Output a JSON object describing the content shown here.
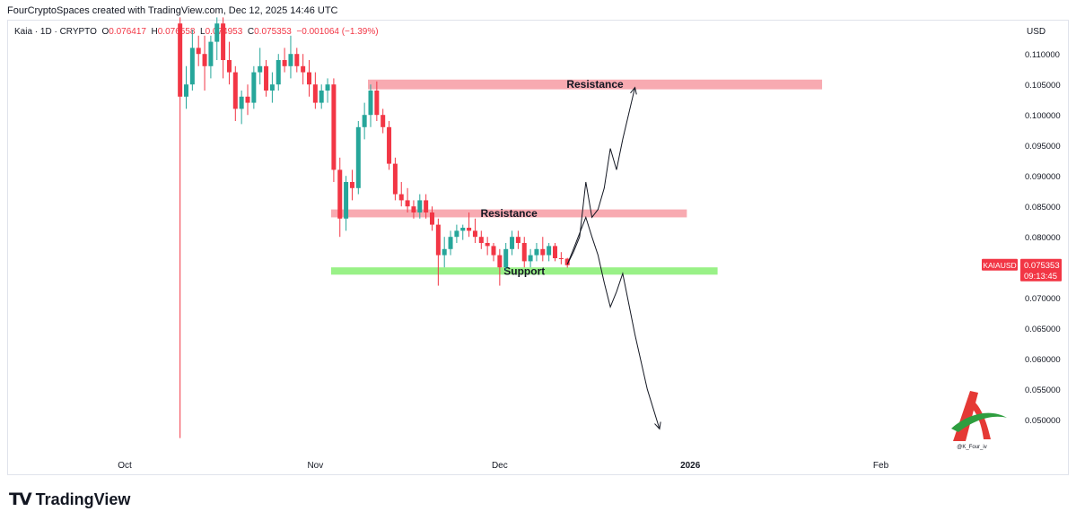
{
  "header": {
    "credit": "FourCryptoSpaces created with TradingView.com, Dec 12, 2025 14:46 UTC"
  },
  "legend": {
    "symbol": "Kaia · 1D · CRYPTO",
    "open_label": "O",
    "open": "0.076417",
    "high_label": "H",
    "high": "0.076558",
    "low_label": "L",
    "low": "0.074953",
    "close_label": "C",
    "close": "0.075353",
    "change": "−0.001064 (−1.39%)"
  },
  "axis": {
    "currency": "USD",
    "y_ticks": [
      "0.110000",
      "0.105000",
      "0.100000",
      "0.095000",
      "0.090000",
      "0.085000",
      "0.080000",
      "0.075000",
      "0.070000",
      "0.065000",
      "0.060000",
      "0.055000",
      "0.050000"
    ],
    "x_ticks": [
      {
        "label": "Oct",
        "date": "2025-10-01",
        "bold": false
      },
      {
        "label": "Nov",
        "date": "2025-11-01",
        "bold": false
      },
      {
        "label": "Dec",
        "date": "2025-12-01",
        "bold": false
      },
      {
        "label": "2026",
        "date": "2026-01-01",
        "bold": true
      },
      {
        "label": "Feb",
        "date": "2026-02-01",
        "bold": false
      }
    ]
  },
  "price_tag": {
    "ticker": "KAIAUSD",
    "price": "0.075353",
    "countdown": "09:13:45"
  },
  "colors": {
    "up": "#26a69a",
    "down": "#f23645",
    "resistance": "#f7a1a8",
    "support": "#8ef07a",
    "tag": "#f23645"
  },
  "watermark": {
    "handle": "@K_Four_iv"
  },
  "footer": {
    "brand": "TradingView",
    "logo": "tradingview-logo"
  },
  "chart_data": {
    "type": "candlestick",
    "symbol": "KAIAUSD",
    "interval": "1D",
    "ylim": [
      0.0465,
      0.1115
    ],
    "candles": [
      {
        "date": "2025-10-10",
        "open": 0.115,
        "high": 0.116,
        "low": 0.047,
        "close": 0.103
      },
      {
        "date": "2025-10-11",
        "open": 0.103,
        "high": 0.108,
        "low": 0.101,
        "close": 0.105
      },
      {
        "date": "2025-10-12",
        "open": 0.105,
        "high": 0.114,
        "low": 0.104,
        "close": 0.111
      },
      {
        "date": "2025-10-13",
        "open": 0.111,
        "high": 0.113,
        "low": 0.108,
        "close": 0.11
      },
      {
        "date": "2025-10-14",
        "open": 0.11,
        "high": 0.113,
        "low": 0.104,
        "close": 0.108
      },
      {
        "date": "2025-10-15",
        "open": 0.108,
        "high": 0.113,
        "low": 0.106,
        "close": 0.112
      },
      {
        "date": "2025-10-16",
        "open": 0.112,
        "high": 0.116,
        "low": 0.109,
        "close": 0.115
      },
      {
        "date": "2025-10-17",
        "open": 0.115,
        "high": 0.116,
        "low": 0.106,
        "close": 0.109
      },
      {
        "date": "2025-10-18",
        "open": 0.109,
        "high": 0.112,
        "low": 0.105,
        "close": 0.107
      },
      {
        "date": "2025-10-19",
        "open": 0.107,
        "high": 0.108,
        "low": 0.099,
        "close": 0.101
      },
      {
        "date": "2025-10-20",
        "open": 0.101,
        "high": 0.104,
        "low": 0.0985,
        "close": 0.103
      },
      {
        "date": "2025-10-21",
        "open": 0.103,
        "high": 0.105,
        "low": 0.1,
        "close": 0.102
      },
      {
        "date": "2025-10-22",
        "open": 0.102,
        "high": 0.108,
        "low": 0.101,
        "close": 0.107
      },
      {
        "date": "2025-10-23",
        "open": 0.107,
        "high": 0.111,
        "low": 0.105,
        "close": 0.108
      },
      {
        "date": "2025-10-24",
        "open": 0.108,
        "high": 0.109,
        "low": 0.103,
        "close": 0.104
      },
      {
        "date": "2025-10-25",
        "open": 0.104,
        "high": 0.107,
        "low": 0.102,
        "close": 0.105
      },
      {
        "date": "2025-10-26",
        "open": 0.105,
        "high": 0.11,
        "low": 0.104,
        "close": 0.109
      },
      {
        "date": "2025-10-27",
        "open": 0.109,
        "high": 0.111,
        "low": 0.107,
        "close": 0.108
      },
      {
        "date": "2025-10-28",
        "open": 0.108,
        "high": 0.113,
        "low": 0.106,
        "close": 0.11
      },
      {
        "date": "2025-10-29",
        "open": 0.11,
        "high": 0.111,
        "low": 0.107,
        "close": 0.108
      },
      {
        "date": "2025-10-30",
        "open": 0.108,
        "high": 0.11,
        "low": 0.105,
        "close": 0.107
      },
      {
        "date": "2025-10-31",
        "open": 0.107,
        "high": 0.109,
        "low": 0.103,
        "close": 0.105
      },
      {
        "date": "2025-11-01",
        "open": 0.105,
        "high": 0.107,
        "low": 0.101,
        "close": 0.102
      },
      {
        "date": "2025-11-02",
        "open": 0.102,
        "high": 0.105,
        "low": 0.101,
        "close": 0.104
      },
      {
        "date": "2025-11-03",
        "open": 0.104,
        "high": 0.106,
        "low": 0.102,
        "close": 0.105
      },
      {
        "date": "2025-11-04",
        "open": 0.105,
        "high": 0.106,
        "low": 0.089,
        "close": 0.091
      },
      {
        "date": "2025-11-05",
        "open": 0.091,
        "high": 0.093,
        "low": 0.08,
        "close": 0.083
      },
      {
        "date": "2025-11-06",
        "open": 0.083,
        "high": 0.09,
        "low": 0.081,
        "close": 0.089
      },
      {
        "date": "2025-11-07",
        "open": 0.089,
        "high": 0.091,
        "low": 0.086,
        "close": 0.088
      },
      {
        "date": "2025-11-08",
        "open": 0.088,
        "high": 0.099,
        "low": 0.087,
        "close": 0.098
      },
      {
        "date": "2025-11-09",
        "open": 0.098,
        "high": 0.102,
        "low": 0.096,
        "close": 0.1
      },
      {
        "date": "2025-11-10",
        "open": 0.1,
        "high": 0.105,
        "low": 0.098,
        "close": 0.104
      },
      {
        "date": "2025-11-11",
        "open": 0.104,
        "high": 0.1055,
        "low": 0.099,
        "close": 0.1
      },
      {
        "date": "2025-11-12",
        "open": 0.1,
        "high": 0.101,
        "low": 0.097,
        "close": 0.098
      },
      {
        "date": "2025-11-13",
        "open": 0.098,
        "high": 0.099,
        "low": 0.091,
        "close": 0.092
      },
      {
        "date": "2025-11-14",
        "open": 0.092,
        "high": 0.093,
        "low": 0.086,
        "close": 0.087
      },
      {
        "date": "2025-11-15",
        "open": 0.087,
        "high": 0.089,
        "low": 0.085,
        "close": 0.086
      },
      {
        "date": "2025-11-16",
        "open": 0.086,
        "high": 0.088,
        "low": 0.084,
        "close": 0.085
      },
      {
        "date": "2025-11-17",
        "open": 0.085,
        "high": 0.086,
        "low": 0.083,
        "close": 0.084
      },
      {
        "date": "2025-11-18",
        "open": 0.084,
        "high": 0.087,
        "low": 0.083,
        "close": 0.086
      },
      {
        "date": "2025-11-19",
        "open": 0.086,
        "high": 0.087,
        "low": 0.083,
        "close": 0.084
      },
      {
        "date": "2025-11-20",
        "open": 0.084,
        "high": 0.085,
        "low": 0.081,
        "close": 0.082
      },
      {
        "date": "2025-11-21",
        "open": 0.082,
        "high": 0.083,
        "low": 0.072,
        "close": 0.077
      },
      {
        "date": "2025-11-22",
        "open": 0.077,
        "high": 0.08,
        "low": 0.075,
        "close": 0.078
      },
      {
        "date": "2025-11-23",
        "open": 0.078,
        "high": 0.081,
        "low": 0.077,
        "close": 0.08
      },
      {
        "date": "2025-11-24",
        "open": 0.08,
        "high": 0.082,
        "low": 0.079,
        "close": 0.081
      },
      {
        "date": "2025-11-25",
        "open": 0.081,
        "high": 0.082,
        "low": 0.0795,
        "close": 0.0815
      },
      {
        "date": "2025-11-26",
        "open": 0.0815,
        "high": 0.084,
        "low": 0.08,
        "close": 0.081
      },
      {
        "date": "2025-11-27",
        "open": 0.081,
        "high": 0.083,
        "low": 0.079,
        "close": 0.08
      },
      {
        "date": "2025-11-28",
        "open": 0.08,
        "high": 0.081,
        "low": 0.078,
        "close": 0.079
      },
      {
        "date": "2025-11-29",
        "open": 0.079,
        "high": 0.08,
        "low": 0.077,
        "close": 0.0785
      },
      {
        "date": "2025-11-30",
        "open": 0.0785,
        "high": 0.079,
        "low": 0.076,
        "close": 0.077
      },
      {
        "date": "2025-12-01",
        "open": 0.077,
        "high": 0.078,
        "low": 0.072,
        "close": 0.075
      },
      {
        "date": "2025-12-02",
        "open": 0.075,
        "high": 0.079,
        "low": 0.0745,
        "close": 0.078
      },
      {
        "date": "2025-12-03",
        "open": 0.078,
        "high": 0.081,
        "low": 0.077,
        "close": 0.08
      },
      {
        "date": "2025-12-04",
        "open": 0.08,
        "high": 0.081,
        "low": 0.078,
        "close": 0.079
      },
      {
        "date": "2025-12-05",
        "open": 0.079,
        "high": 0.08,
        "low": 0.075,
        "close": 0.076
      },
      {
        "date": "2025-12-06",
        "open": 0.076,
        "high": 0.078,
        "low": 0.075,
        "close": 0.077
      },
      {
        "date": "2025-12-07",
        "open": 0.077,
        "high": 0.079,
        "low": 0.076,
        "close": 0.078
      },
      {
        "date": "2025-12-08",
        "open": 0.078,
        "high": 0.08,
        "low": 0.076,
        "close": 0.077
      },
      {
        "date": "2025-12-09",
        "open": 0.077,
        "high": 0.079,
        "low": 0.076,
        "close": 0.0785
      },
      {
        "date": "2025-12-10",
        "open": 0.0785,
        "high": 0.079,
        "low": 0.076,
        "close": 0.0765
      },
      {
        "date": "2025-12-11",
        "open": 0.0765,
        "high": 0.0775,
        "low": 0.0755,
        "close": 0.0764
      },
      {
        "date": "2025-12-12",
        "open": 0.076417,
        "high": 0.076558,
        "low": 0.074953,
        "close": 0.075353
      }
    ],
    "zones": [
      {
        "label": "Resistance",
        "from": "2025-11-10",
        "to": "2026-01-22",
        "low": 0.1042,
        "high": 0.1058
      },
      {
        "label": "Resistance",
        "from": "2025-11-04",
        "to": "2025-12-31",
        "low": 0.0832,
        "high": 0.0845
      },
      {
        "label": "Support",
        "from": "2025-11-04",
        "to": "2026-01-05",
        "low": 0.0738,
        "high": 0.075
      }
    ],
    "projections": [
      {
        "points": [
          [
            "2025-12-12",
            0.0755
          ],
          [
            "2025-12-13",
            0.0775
          ],
          [
            "2025-12-14",
            0.08
          ],
          [
            "2025-12-15",
            0.089
          ],
          [
            "2025-12-16",
            0.0832
          ],
          [
            "2025-12-17",
            0.0845
          ],
          [
            "2025-12-18",
            0.088
          ],
          [
            "2025-12-19",
            0.0945
          ],
          [
            "2025-12-20",
            0.091
          ],
          [
            "2025-12-21",
            0.096
          ],
          [
            "2025-12-23",
            0.1045
          ]
        ]
      },
      {
        "points": [
          [
            "2025-12-12",
            0.0755
          ],
          [
            "2025-12-13",
            0.078
          ],
          [
            "2025-12-15",
            0.0832
          ],
          [
            "2025-12-16",
            0.08
          ],
          [
            "2025-12-17",
            0.077
          ],
          [
            "2025-12-18",
            0.0725
          ],
          [
            "2025-12-19",
            0.0685
          ],
          [
            "2025-12-20",
            0.071
          ],
          [
            "2025-12-21",
            0.074
          ],
          [
            "2025-12-23",
            0.064
          ],
          [
            "2025-12-25",
            0.055
          ],
          [
            "2025-12-27",
            0.0485
          ]
        ]
      }
    ],
    "last_price": 0.075353
  }
}
